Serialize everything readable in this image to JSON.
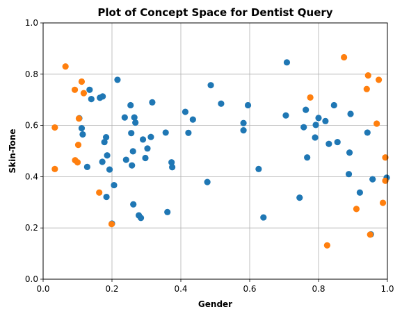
{
  "chart_data": {
    "type": "scatter",
    "title": "Plot of Concept Space for Dentist Query",
    "xlabel": "Gender",
    "ylabel": "Skin-Tone",
    "xlim": [
      0.0,
      1.0
    ],
    "ylim": [
      0.0,
      1.0
    ],
    "xticks": [
      "0.0",
      "0.2",
      "0.4",
      "0.6",
      "0.8",
      "1.0"
    ],
    "yticks": [
      "0.0",
      "0.2",
      "0.4",
      "0.6",
      "0.8",
      "1.0"
    ],
    "grid": true,
    "series": [
      {
        "color": "#1f77b4",
        "points": [
          [
            0.105,
            0.628
          ],
          [
            0.112,
            0.589
          ],
          [
            0.115,
            0.565
          ],
          [
            0.128,
            0.438
          ],
          [
            0.135,
            0.739
          ],
          [
            0.14,
            0.703
          ],
          [
            0.165,
            0.708
          ],
          [
            0.173,
            0.713
          ],
          [
            0.172,
            0.458
          ],
          [
            0.178,
            0.535
          ],
          [
            0.183,
            0.554
          ],
          [
            0.186,
            0.483
          ],
          [
            0.184,
            0.321
          ],
          [
            0.193,
            0.428
          ],
          [
            0.2,
            0.217
          ],
          [
            0.206,
            0.367
          ],
          [
            0.216,
            0.778
          ],
          [
            0.237,
            0.631
          ],
          [
            0.241,
            0.466
          ],
          [
            0.254,
            0.679
          ],
          [
            0.256,
            0.57
          ],
          [
            0.258,
            0.444
          ],
          [
            0.261,
            0.499
          ],
          [
            0.262,
            0.292
          ],
          [
            0.265,
            0.631
          ],
          [
            0.268,
            0.611
          ],
          [
            0.278,
            0.249
          ],
          [
            0.284,
            0.239
          ],
          [
            0.29,
            0.545
          ],
          [
            0.297,
            0.473
          ],
          [
            0.303,
            0.51
          ],
          [
            0.313,
            0.555
          ],
          [
            0.317,
            0.69
          ],
          [
            0.356,
            0.572
          ],
          [
            0.361,
            0.262
          ],
          [
            0.373,
            0.456
          ],
          [
            0.375,
            0.437
          ],
          [
            0.413,
            0.653
          ],
          [
            0.422,
            0.571
          ],
          [
            0.435,
            0.623
          ],
          [
            0.477,
            0.379
          ],
          [
            0.487,
            0.757
          ],
          [
            0.517,
            0.685
          ],
          [
            0.582,
            0.609
          ],
          [
            0.582,
            0.581
          ],
          [
            0.595,
            0.679
          ],
          [
            0.626,
            0.43
          ],
          [
            0.64,
            0.241
          ],
          [
            0.705,
            0.639
          ],
          [
            0.708,
            0.846
          ],
          [
            0.745,
            0.318
          ],
          [
            0.757,
            0.593
          ],
          [
            0.763,
            0.661
          ],
          [
            0.767,
            0.475
          ],
          [
            0.79,
            0.553
          ],
          [
            0.792,
            0.602
          ],
          [
            0.8,
            0.629
          ],
          [
            0.82,
            0.617
          ],
          [
            0.83,
            0.528
          ],
          [
            0.845,
            0.679
          ],
          [
            0.855,
            0.535
          ],
          [
            0.888,
            0.41
          ],
          [
            0.89,
            0.494
          ],
          [
            0.893,
            0.645
          ],
          [
            0.92,
            0.338
          ],
          [
            0.942,
            0.572
          ],
          [
            0.952,
            0.175
          ],
          [
            0.957,
            0.39
          ],
          [
            0.998,
            0.396
          ]
        ]
      },
      {
        "color": "#ff7f0e",
        "points": [
          [
            0.034,
            0.592
          ],
          [
            0.034,
            0.43
          ],
          [
            0.065,
            0.83
          ],
          [
            0.092,
            0.739
          ],
          [
            0.093,
            0.464
          ],
          [
            0.1,
            0.456
          ],
          [
            0.102,
            0.524
          ],
          [
            0.104,
            0.627
          ],
          [
            0.112,
            0.771
          ],
          [
            0.118,
            0.726
          ],
          [
            0.163,
            0.338
          ],
          [
            0.199,
            0.215
          ],
          [
            0.776,
            0.709
          ],
          [
            0.825,
            0.132
          ],
          [
            0.874,
            0.866
          ],
          [
            0.94,
            0.742
          ],
          [
            0.944,
            0.795
          ],
          [
            0.95,
            0.174
          ],
          [
            0.91,
            0.274
          ],
          [
            0.969,
            0.607
          ],
          [
            0.975,
            0.778
          ],
          [
            0.987,
            0.298
          ],
          [
            0.994,
            0.475
          ],
          [
            0.994,
            0.384
          ]
        ]
      }
    ]
  }
}
